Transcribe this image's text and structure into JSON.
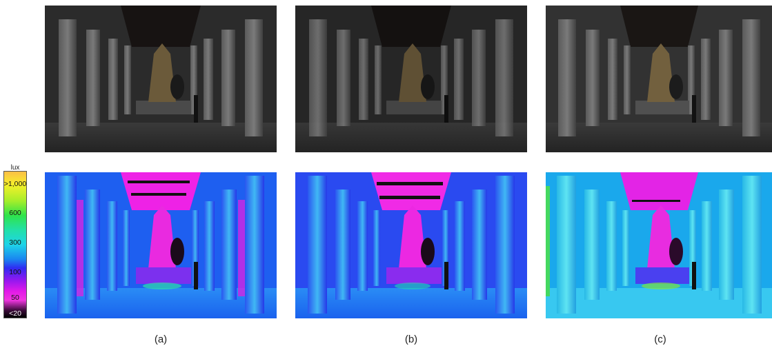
{
  "captions": [
    "(a)",
    "(b)",
    "(c)"
  ],
  "scale": {
    "unit": "lux",
    "ticks": [
      ">1,000",
      "600",
      "300",
      "100",
      "50",
      "<20"
    ]
  },
  "colors": {
    "photo_bg": "#2a2a2a",
    "falsecolor_base": "#1d7cf2",
    "ceiling": "#ee22e6"
  }
}
